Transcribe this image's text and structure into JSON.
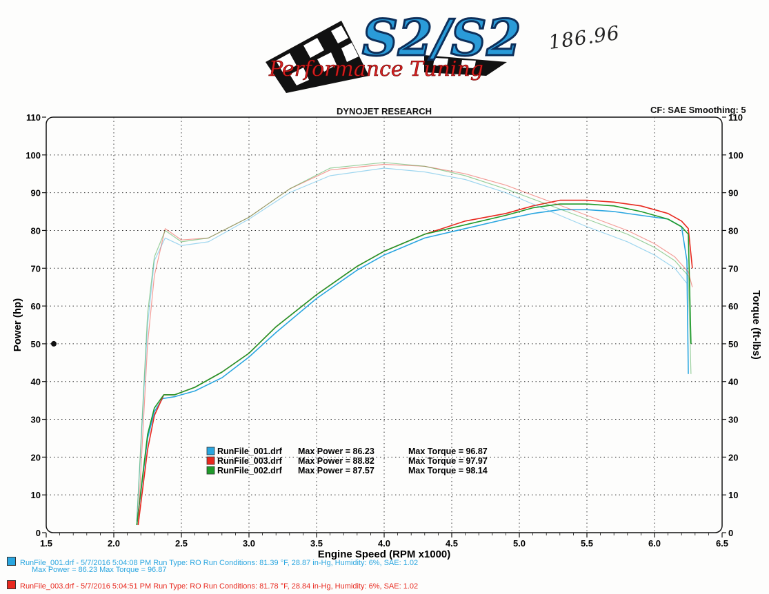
{
  "header": {
    "center_title": "DYNOJET RESEARCH",
    "right_info": "CF: SAE  Smoothing: 5",
    "handwritten_note": "186.96",
    "logo_text": "S2/S2 Performance Tuning"
  },
  "colors": {
    "run_001": "#2aa6e0",
    "run_003": "#e8281e",
    "run_002": "#1f9a2a",
    "grid": "#333333"
  },
  "chart_data": {
    "type": "line",
    "title": "DYNOJET RESEARCH",
    "xlabel": "Engine Speed (RPM x1000)",
    "ylabel": "Power (hp)",
    "y2label": "Torque (ft-lbs)",
    "xlim": [
      1.5,
      6.5
    ],
    "ylim": [
      0,
      110
    ],
    "y2lim": [
      0,
      110
    ],
    "x_ticks": [
      "1.5",
      "2.0",
      "2.5",
      "3.0",
      "3.5",
      "4.0",
      "4.5",
      "5.0",
      "5.5",
      "6.0",
      "6.5"
    ],
    "y_ticks": [
      "0",
      "10",
      "20",
      "30",
      "40",
      "50",
      "60",
      "70",
      "80",
      "90",
      "100",
      "110"
    ],
    "grid": true,
    "legend_position": "lower-center",
    "series": [
      {
        "name": "RunFile_001.drf",
        "kind": "power",
        "x": [
          2.17,
          2.25,
          2.3,
          2.36,
          2.45,
          2.6,
          2.8,
          3.0,
          3.2,
          3.5,
          3.8,
          4.0,
          4.3,
          4.6,
          4.9,
          5.1,
          5.3,
          5.5,
          5.7,
          5.9,
          6.1,
          6.2,
          6.24,
          6.25
        ],
        "y": [
          2,
          25,
          32,
          35.5,
          36,
          37.5,
          41,
          46.5,
          53,
          62,
          69.5,
          73.5,
          78,
          80.5,
          83,
          84.5,
          85.5,
          85.5,
          85,
          84,
          83,
          81,
          72,
          42
        ]
      },
      {
        "name": "RunFile_003.drf",
        "kind": "power",
        "x": [
          2.18,
          2.25,
          2.3,
          2.37,
          2.45,
          2.6,
          2.8,
          3.0,
          3.2,
          3.5,
          3.8,
          4.0,
          4.3,
          4.6,
          4.9,
          5.1,
          5.3,
          5.5,
          5.7,
          5.9,
          6.1,
          6.2,
          6.25,
          6.28
        ],
        "y": [
          2,
          22,
          31,
          36.5,
          36.5,
          38.5,
          42.5,
          47.5,
          54.5,
          63,
          70.5,
          74.5,
          79,
          82.5,
          84.5,
          86.5,
          88,
          88,
          87.5,
          86.5,
          84.5,
          82.5,
          80.5,
          70
        ]
      },
      {
        "name": "RunFile_002.drf",
        "kind": "power",
        "x": [
          2.17,
          2.25,
          2.3,
          2.37,
          2.45,
          2.6,
          2.8,
          3.0,
          3.2,
          3.5,
          3.8,
          4.0,
          4.3,
          4.6,
          4.9,
          5.1,
          5.3,
          5.5,
          5.7,
          5.9,
          6.1,
          6.2,
          6.25,
          6.27
        ],
        "y": [
          2,
          26,
          33,
          36.5,
          36.5,
          38.5,
          42.5,
          47.5,
          54.5,
          63,
          70.5,
          74.5,
          79,
          81.5,
          84,
          86,
          87,
          87,
          86.5,
          85,
          83,
          81,
          79,
          50
        ]
      },
      {
        "name": "RunFile_001.drf",
        "kind": "torque",
        "x": [
          2.17,
          2.25,
          2.3,
          2.38,
          2.5,
          2.7,
          3.0,
          3.3,
          3.6,
          4.0,
          4.3,
          4.6,
          4.9,
          5.2,
          5.5,
          5.8,
          6.0,
          6.15,
          6.24,
          6.25
        ],
        "y": [
          3,
          55,
          72,
          78,
          76,
          77,
          83,
          90,
          94.5,
          96.5,
          95.5,
          93.5,
          90,
          85.5,
          81,
          77,
          73.5,
          70,
          66,
          45
        ]
      },
      {
        "name": "RunFile_003.drf",
        "kind": "torque",
        "x": [
          2.18,
          2.25,
          2.3,
          2.38,
          2.5,
          2.7,
          3.0,
          3.3,
          3.6,
          4.0,
          4.3,
          4.6,
          4.9,
          5.2,
          5.5,
          5.8,
          6.0,
          6.15,
          6.25,
          6.28
        ],
        "y": [
          3,
          50,
          68,
          80.5,
          77.5,
          78,
          83.5,
          91,
          96,
          97.5,
          97,
          95,
          92,
          88,
          84,
          80,
          76.5,
          73,
          69,
          65
        ]
      },
      {
        "name": "RunFile_002.drf",
        "kind": "torque",
        "x": [
          2.17,
          2.25,
          2.3,
          2.38,
          2.5,
          2.7,
          3.0,
          3.3,
          3.6,
          4.0,
          4.3,
          4.6,
          4.9,
          5.2,
          5.5,
          5.8,
          6.0,
          6.15,
          6.25,
          6.27
        ],
        "y": [
          3,
          58,
          73,
          80,
          77,
          78,
          83.5,
          91,
          96.5,
          98,
          97,
          94.5,
          91,
          87,
          83,
          79,
          75.5,
          72,
          68,
          42
        ]
      }
    ],
    "legend": [
      {
        "file": "RunFile_001.drf",
        "max_power_label": "Max Power = 86.23",
        "max_torque_label": "Max Torque = 96.87",
        "color": "#2aa6e0"
      },
      {
        "file": "RunFile_003.drf",
        "max_power_label": "Max Power = 88.82",
        "max_torque_label": "Max Torque = 97.97",
        "color": "#e8281e"
      },
      {
        "file": "RunFile_002.drf",
        "max_power_label": "Max Power = 87.57",
        "max_torque_label": "Max Torque = 98.14",
        "color": "#1f9a2a"
      }
    ]
  },
  "footer": {
    "run_001_line": "RunFile_001.drf - 5/7/2016 5:04:08 PM  Run Type: RO  Run Conditions: 81.39 °F, 28.87 in-Hg,  Humidity:  6%, SAE: 1.02",
    "run_001_sub": "Max Power = 86.23  Max Torque = 96.87",
    "run_003_line": "RunFile_003.drf - 5/7/2016 5:04:51 PM  Run Type: RO  Run Conditions: 81.78 °F, 28.84 in-Hg,  Humidity:  6%, SAE: 1.02"
  }
}
